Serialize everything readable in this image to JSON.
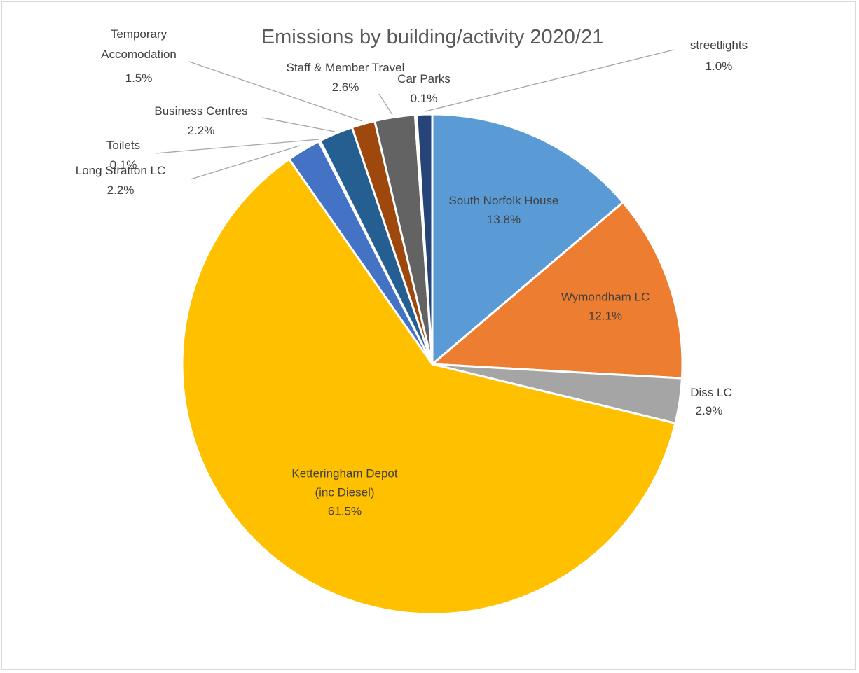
{
  "chart_data": {
    "type": "pie",
    "title": "Emissions by building/activity 2020/21",
    "slices": [
      {
        "name": "South Norfolk House",
        "value": 13.8,
        "label": "13.8%",
        "color": "#5B9BD5"
      },
      {
        "name": "Wymondham LC",
        "value": 12.1,
        "label": "12.1%",
        "color": "#ED7D31"
      },
      {
        "name": "Diss LC",
        "value": 2.9,
        "label": "2.9%",
        "color": "#A5A5A5"
      },
      {
        "name": "Ketteringham Depot (inc Diesel)",
        "value": 61.5,
        "label": "61.5%",
        "color": "#FFC000"
      },
      {
        "name": "Long Stratton LC",
        "value": 2.2,
        "label": "2.2%",
        "color": "#4472C4"
      },
      {
        "name": "Toilets",
        "value": 0.1,
        "label": "0.1%",
        "color": "#70AD47"
      },
      {
        "name": "Business Centres",
        "value": 2.2,
        "label": "2.2%",
        "color": "#255E91"
      },
      {
        "name": "Temporary Accomodation",
        "value": 1.5,
        "label": "1.5%",
        "color": "#9E480E"
      },
      {
        "name": "Staff & Member Travel",
        "value": 2.6,
        "label": "2.6%",
        "color": "#636363"
      },
      {
        "name": "Car Parks",
        "value": 0.1,
        "label": "0.1%",
        "color": "#997300"
      },
      {
        "name": "streetlights",
        "value": 1.0,
        "label": "1.0%",
        "color": "#264478"
      }
    ],
    "start_angle": "12 o'clock",
    "direction": "clockwise",
    "legend": "none"
  }
}
